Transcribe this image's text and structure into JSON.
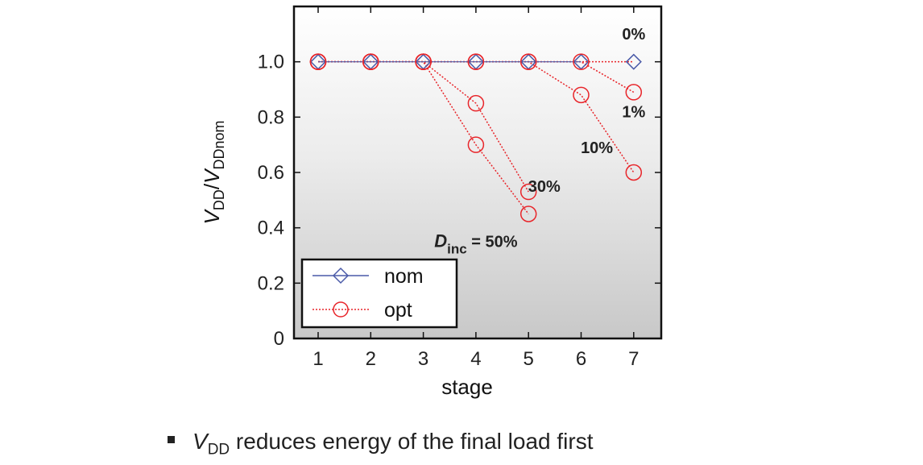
{
  "chart_data": {
    "type": "line",
    "x": [
      1,
      2,
      3,
      4,
      5,
      6,
      7
    ],
    "xlabel": "stage",
    "ylabel": {
      "main": "V",
      "main_sub": "DD",
      "sep": "/",
      "denom": "V",
      "denom_sub": "DDnom"
    },
    "xlim": [
      0.55,
      7.55
    ],
    "ylim": [
      0,
      1.2
    ],
    "xticks": [
      "1",
      "2",
      "3",
      "4",
      "5",
      "6",
      "7"
    ],
    "yticks": [
      {
        "value": 0,
        "label": "0"
      },
      {
        "value": 0.2,
        "label": "0.2"
      },
      {
        "value": 0.4,
        "label": "0.4"
      },
      {
        "value": 0.6,
        "label": "0.6"
      },
      {
        "value": 0.8,
        "label": "0.8"
      },
      {
        "value": 1.0,
        "label": "1.0"
      }
    ],
    "nom": [
      1.0,
      1.0,
      1.0,
      1.0,
      1.0,
      1.0,
      1.0
    ],
    "opt_curves": [
      {
        "label": "0%",
        "y": [
          1.0,
          1.0,
          1.0,
          1.0,
          1.0,
          1.0,
          1.0
        ]
      },
      {
        "label": "1%",
        "y": [
          1.0,
          1.0,
          1.0,
          1.0,
          1.0,
          1.0,
          0.89
        ]
      },
      {
        "label": "10%",
        "y": [
          1.0,
          1.0,
          1.0,
          1.0,
          1.0,
          0.88,
          0.6
        ]
      },
      {
        "label": "30%",
        "y": [
          1.0,
          1.0,
          1.0,
          0.85,
          0.53
        ]
      },
      {
        "label": "50%",
        "y": [
          1.0,
          1.0,
          1.0,
          0.7,
          0.45
        ]
      }
    ],
    "annotations": [
      {
        "text": "0%",
        "x": 7,
        "y": 1.08
      },
      {
        "text": "1%",
        "x": 7,
        "y": 0.8
      },
      {
        "text": "10%",
        "x": 6.3,
        "y": 0.67
      },
      {
        "text": "30%",
        "x": 5.3,
        "y": 0.53
      },
      {
        "main": "D",
        "sub": "inc",
        "rest": " = 50%",
        "x": 4.0,
        "y": 0.33
      }
    ],
    "legend": {
      "position": "bottom-left",
      "entries": [
        {
          "name": "nom",
          "color": "#4a5aa8",
          "marker": "diamond"
        },
        {
          "name": "opt",
          "color": "#e8252a",
          "marker": "circle"
        }
      ]
    },
    "background": "gradient white-to-gray"
  },
  "bullet": {
    "v": "V",
    "sub": "DD",
    "text": " reduces energy of the final load first"
  }
}
